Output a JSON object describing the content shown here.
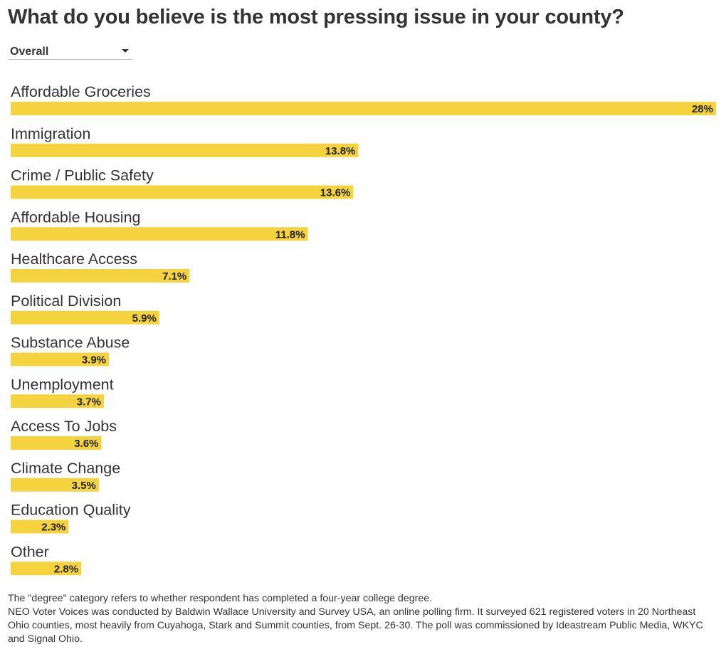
{
  "title": "What do you believe is the most pressing issue in your county?",
  "filter": {
    "selected": "Overall"
  },
  "colors": {
    "bar": "#f5d33f",
    "category_label": "#333333",
    "value_label": "#222222"
  },
  "chart_data": {
    "type": "bar",
    "orientation": "horizontal",
    "categories": [
      "Affordable Groceries",
      "Immigration",
      "Crime / Public Safety",
      "Affordable Housing",
      "Healthcare Access",
      "Political Division",
      "Substance Abuse",
      "Unemployment",
      "Access To Jobs",
      "Climate Change",
      "Education Quality",
      "Other"
    ],
    "values": [
      28,
      13.8,
      13.6,
      11.8,
      7.1,
      5.9,
      3.9,
      3.7,
      3.6,
      3.5,
      2.3,
      2.8
    ],
    "value_labels": [
      "28%",
      "13.8%",
      "13.6%",
      "11.8%",
      "7.1%",
      "5.9%",
      "3.9%",
      "3.7%",
      "3.6%",
      "3.5%",
      "2.3%",
      "2.8%"
    ],
    "xlim": [
      0,
      28
    ],
    "grid": false,
    "legend": "none"
  },
  "footnotes": [
    "The \"degree\" category refers to whether respondent has completed a four-year college degree.",
    "NEO Voter Voices was conducted by Baldwin Wallace University and Survey USA, an online polling firm. It surveyed 621 registered voters in 20 Northeast Ohio counties, most heavily from Cuyahoga, Stark and Summit counties, from Sept. 26-30. The poll was commissioned by Ideastream Public Media, WKYC and Signal Ohio."
  ]
}
